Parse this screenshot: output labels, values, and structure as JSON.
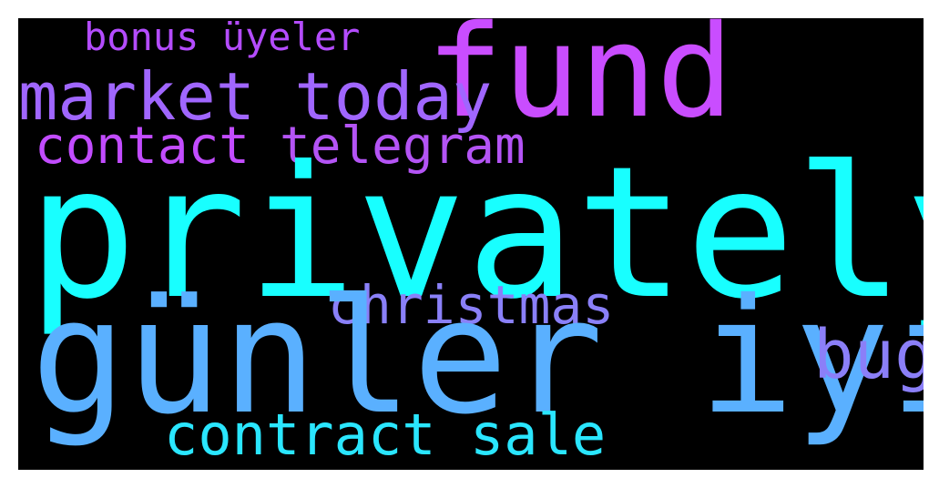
{
  "words": [
    {
      "text": "bonus üyeler",
      "color": "#b44cff"
    },
    {
      "text": "fund",
      "color": "#c94dff"
    },
    {
      "text": "market today",
      "color": "#a066ff"
    },
    {
      "text": "contact",
      "color": "#c24cff"
    },
    {
      "text": "telegram",
      "color": "#b454f5"
    },
    {
      "text": "privately",
      "color": "#18ffff"
    },
    {
      "text": "christmas",
      "color": "#8a80f8"
    },
    {
      "text": "günler iyi",
      "color": "#5ab0ff"
    },
    {
      "text": "bug",
      "color": "#8b7ff8"
    },
    {
      "text": "contract sale",
      "color": "#2ae6ff"
    }
  ]
}
